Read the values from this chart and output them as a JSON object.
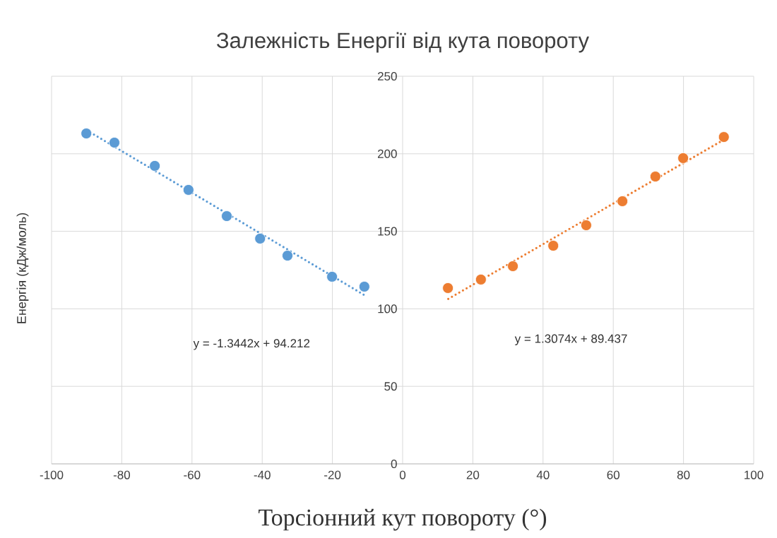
{
  "chart_data": {
    "type": "scatter",
    "title": "Залежність Енергії від кута повороту",
    "xlabel": "Торсіонний кут повороту (°)",
    "ylabel": "Енергія (кДж/моль)",
    "series": [
      {
        "type": "scatter",
        "color": "#5b9bd5",
        "marker": "circle",
        "x": [
          -90.1,
          -82.1,
          -70.6,
          -61.0,
          -50.1,
          -40.6,
          -32.8,
          -20.1,
          -10.9
        ],
        "values": [
          213.1,
          207.2,
          192.2,
          176.7,
          159.8,
          145.3,
          134.3,
          120.7,
          114.3
        ]
      },
      {
        "type": "scatter",
        "color": "#ed7d31",
        "marker": "circle",
        "x": [
          12.9,
          22.3,
          31.4,
          42.9,
          52.3,
          62.6,
          72.0,
          79.9,
          91.5
        ],
        "values": [
          113.4,
          118.9,
          127.5,
          140.7,
          153.9,
          169.4,
          185.3,
          197.2,
          210.8
        ]
      },
      {
        "type": "line",
        "color": "#5b9bd5",
        "line_style": "dotted",
        "x": [
          -90,
          -11
        ],
        "values": [
          215.2,
          109.0
        ]
      },
      {
        "type": "line",
        "color": "#ed7d31",
        "line_style": "dotted",
        "x": [
          13,
          91.5
        ],
        "values": [
          106.4,
          209.1
        ]
      }
    ],
    "annotations": [
      "y = -1.3442x + 94.212",
      "y = 1.3074x + 89.437"
    ],
    "xlim": [
      -100,
      100
    ],
    "ylim": [
      0,
      250
    ],
    "xticks": [
      -100,
      -80,
      -60,
      -40,
      -20,
      0,
      20,
      40,
      60,
      80,
      100
    ],
    "yticks": [
      0,
      50,
      100,
      150,
      200,
      250
    ],
    "grid": true,
    "legend": false
  }
}
